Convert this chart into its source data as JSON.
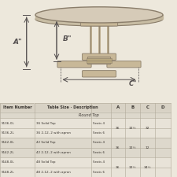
{
  "bg_color": "#ede8dc",
  "table_color": "#d6cbb8",
  "table_edge": "#8a7d6a",
  "dim_color": "#555050",
  "text_color": "#3a3530",
  "line_color": "#b0a898",
  "header_bg": "#d8d2c5",
  "row_bg1": "#e8e3d8",
  "row_bg2": "#ddd8cc",
  "subtitle": "Round Top",
  "rows": [
    [
      "S136-0L",
      "36 Solid Top",
      "Seats 4",
      "36",
      "32½",
      "32",
      ""
    ],
    [
      "S136-2L",
      "36 2-12, 2 with apron",
      "Seats 6",
      "",
      "",
      "",
      ""
    ],
    [
      "S142-0L",
      "42 Solid Top",
      "Seats 4",
      "36",
      "32½",
      "12",
      ""
    ],
    [
      "S142-2L",
      "42 2-12, 2 with apron",
      "Seats 6",
      "",
      "",
      "",
      ""
    ],
    [
      "S148-0L",
      "48 Solid Top",
      "Seats 4",
      "36",
      "32½",
      "34½",
      ""
    ],
    [
      "S148-2L",
      "48 2-12, 2 with apron",
      "Seats 6",
      "",
      "",
      "",
      ""
    ]
  ]
}
